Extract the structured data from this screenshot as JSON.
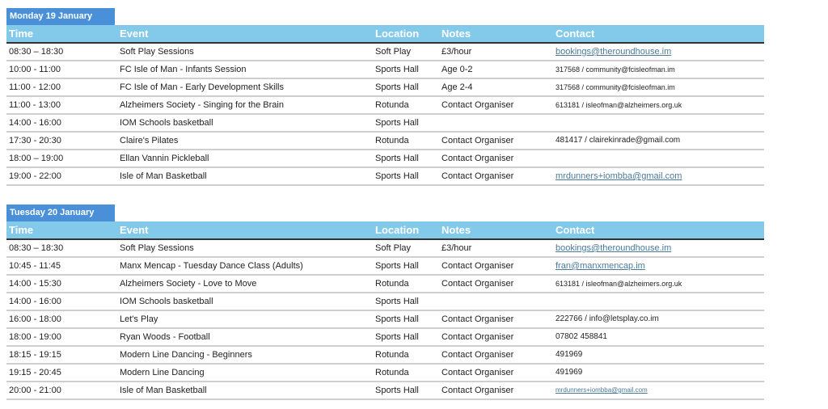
{
  "columns": [
    "Time",
    "Event",
    "Location",
    "Notes",
    "Contact"
  ],
  "days": [
    {
      "title": "Monday 19 January",
      "rows": [
        [
          "08:30 – 18:30",
          "Soft Play Sessions",
          "Soft Play",
          "£3/hour",
          "bookings@theroundhouse.im"
        ],
        [
          "10:00 - 11:00",
          "FC Isle of Man - Infants Session",
          "Sports Hall",
          "Age 0-2",
          "317568 / community@fcisleofman.im"
        ],
        [
          "11:00 - 12:00",
          "FC Isle of Man - Early Development Skills",
          "Sports Hall",
          "Age 2-4",
          "317568 / community@fcisleofman.im"
        ],
        [
          "11:00 - 13:00",
          "Alzheimers Society - Singing for the Brain",
          "Rotunda",
          "Contact Organiser",
          "613181 / isleofman@alzheimers.org.uk"
        ],
        [
          "14:00 - 16:00",
          "IOM Schools basketball",
          "Sports Hall",
          "",
          ""
        ],
        [
          "17:30 - 20:30",
          "Claire's Pilates",
          "Rotunda",
          "Contact Organiser",
          "481417 / clairekinrade@gmail.com"
        ],
        [
          "18:00 – 19:00",
          "Ellan Vannin Pickleball",
          "Sports Hall",
          "Contact Organiser",
          ""
        ],
        [
          "19:00 - 22:00",
          "Isle of Man Basketball",
          "Sports Hall",
          "Contact Organiser",
          "mrdunners+iombba@gmail.com"
        ]
      ]
    },
    {
      "title": "Tuesday 20 January",
      "rows": [
        [
          "08:30 – 18:30",
          "Soft Play Sessions",
          "Soft Play",
          "£3/hour",
          "bookings@theroundhouse.im"
        ],
        [
          "10:45 - 11:45",
          "Manx Mencap - Tuesday Dance Class (Adults)",
          "Sports Hall",
          "Contact Organiser",
          "fran@manxmencap.im"
        ],
        [
          "14:00 - 15:30",
          "Alzheimers Society - Love to Move",
          "Rotunda",
          "Contact Organiser",
          "613181 / isleofman@alzheimers.org.uk"
        ],
        [
          "14:00 - 16:00",
          "IOM Schools basketball",
          "Sports Hall",
          "",
          ""
        ],
        [
          "16:00 - 18:00",
          "Let's Play",
          "Sports Hall",
          "Contact Organiser",
          "222766 / info@letsplay.co.im"
        ],
        [
          "18:00 - 19:00",
          "Ryan Woods - Football",
          "Sports Hall",
          "Contact Organiser",
          "07802 458841"
        ],
        [
          "18:15 - 19:15",
          "Modern Line Dancing - Beginners",
          "Rotunda",
          "Contact Organiser",
          "491969"
        ],
        [
          "19:15 - 20:45",
          "Modern Line Dancing",
          "Rotunda",
          "Contact Organiser",
          "491969"
        ],
        [
          "20:00 - 21:00",
          "Isle of Man Basketball",
          "Sports Hall",
          "Contact Organiser",
          "mrdunners+iombba@gmail.com"
        ]
      ]
    }
  ]
}
